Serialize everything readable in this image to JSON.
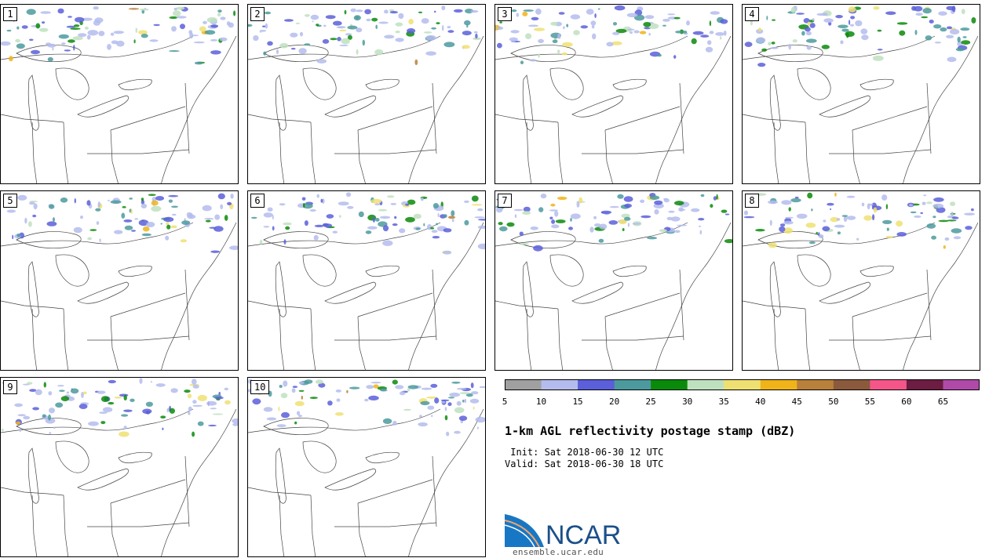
{
  "panels": [
    {
      "label": "1"
    },
    {
      "label": "2"
    },
    {
      "label": "3"
    },
    {
      "label": "4"
    },
    {
      "label": "5"
    },
    {
      "label": "6"
    },
    {
      "label": "7"
    },
    {
      "label": "8"
    },
    {
      "label": "9"
    },
    {
      "label": "10"
    }
  ],
  "colorbar": {
    "colors": [
      "#a0a0a0",
      "#b4bced",
      "#5b5fd9",
      "#4c9a9e",
      "#0a8a0a",
      "#bfe0bf",
      "#efe072",
      "#f0b41a",
      "#b8803a",
      "#8b5a3c",
      "#f4568a",
      "#6d1c42",
      "#b04aa8"
    ],
    "ticks": [
      "5",
      "10",
      "15",
      "20",
      "25",
      "30",
      "35",
      "40",
      "45",
      "50",
      "55",
      "60",
      "65"
    ]
  },
  "title": "1-km AGL reflectivity postage stamp (dBZ)",
  "init_line": " Init: Sat 2018-06-30 12 UTC",
  "valid_line": "Valid: Sat 2018-06-30 18 UTC",
  "logo": {
    "wordmark": "NCAR",
    "url_text": "ensemble.ucar.edu",
    "blue": "#1877c4"
  }
}
